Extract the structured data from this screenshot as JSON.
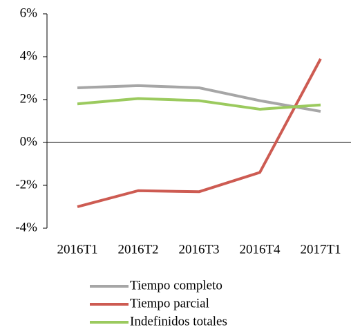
{
  "chart_data": {
    "type": "line",
    "categories": [
      "2016T1",
      "2016T2",
      "2016T3",
      "2016T4",
      "2017T1"
    ],
    "series": [
      {
        "name": "Tiempo completo",
        "color": "#a6a6a6",
        "values": [
          2.55,
          2.65,
          2.55,
          1.95,
          1.45
        ]
      },
      {
        "name": "Tiempo parcial",
        "color": "#cd5b52",
        "values": [
          -3.0,
          -2.25,
          -2.3,
          -1.4,
          3.9
        ]
      },
      {
        "name": "Indefinidos totales",
        "color": "#9bca5e",
        "values": [
          1.8,
          2.05,
          1.95,
          1.55,
          1.75
        ]
      }
    ],
    "ylim": [
      -4,
      6
    ],
    "yticks": [
      {
        "value": -4,
        "label": "-4%"
      },
      {
        "value": -2,
        "label": "-2%"
      },
      {
        "value": 0,
        "label": "0%"
      },
      {
        "value": 2,
        "label": "2%"
      },
      {
        "value": 4,
        "label": "4%"
      },
      {
        "value": 6,
        "label": "6%"
      }
    ],
    "grid": false,
    "legend": "bottom"
  }
}
